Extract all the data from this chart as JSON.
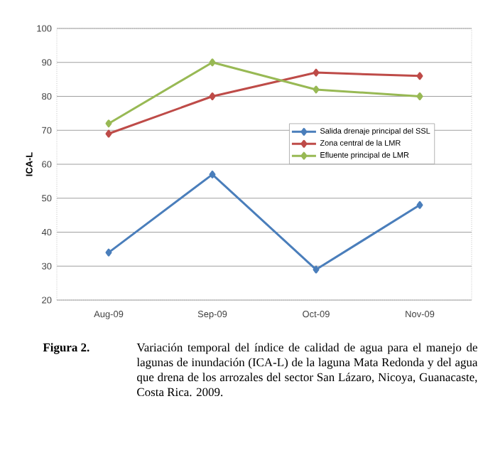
{
  "chart_data": {
    "type": "line",
    "ylabel": "ICA-L",
    "categories": [
      "Aug-09",
      "Sep-09",
      "Oct-09",
      "Nov-09"
    ],
    "series": [
      {
        "name": "Salida drenaje principal del SSL",
        "color": "#4a7ebb",
        "values": [
          34,
          57,
          29,
          48
        ]
      },
      {
        "name": "Zona central de la LMR",
        "color": "#be4b48",
        "values": [
          69,
          80,
          87,
          86
        ]
      },
      {
        "name": "Efluente principal de LMR",
        "color": "#98b954",
        "values": [
          72,
          90,
          82,
          80
        ]
      }
    ],
    "ylim": [
      20,
      100
    ],
    "yticks": [
      20,
      30,
      40,
      50,
      60,
      70,
      80,
      90,
      100
    ],
    "grid": "y",
    "legend": "right",
    "marker": "diamond",
    "line_style": "solid",
    "annotations": [
      "Figura 2.",
      "Variación temporal del índice de calidad de agua para el manejo de lagunas de inundación (ICA-L) de la laguna Mata Redonda y del agua que drena de los arrozales del sector San Lázaro, Nicoya, Guanacaste, Costa Rica. 2009."
    ]
  }
}
